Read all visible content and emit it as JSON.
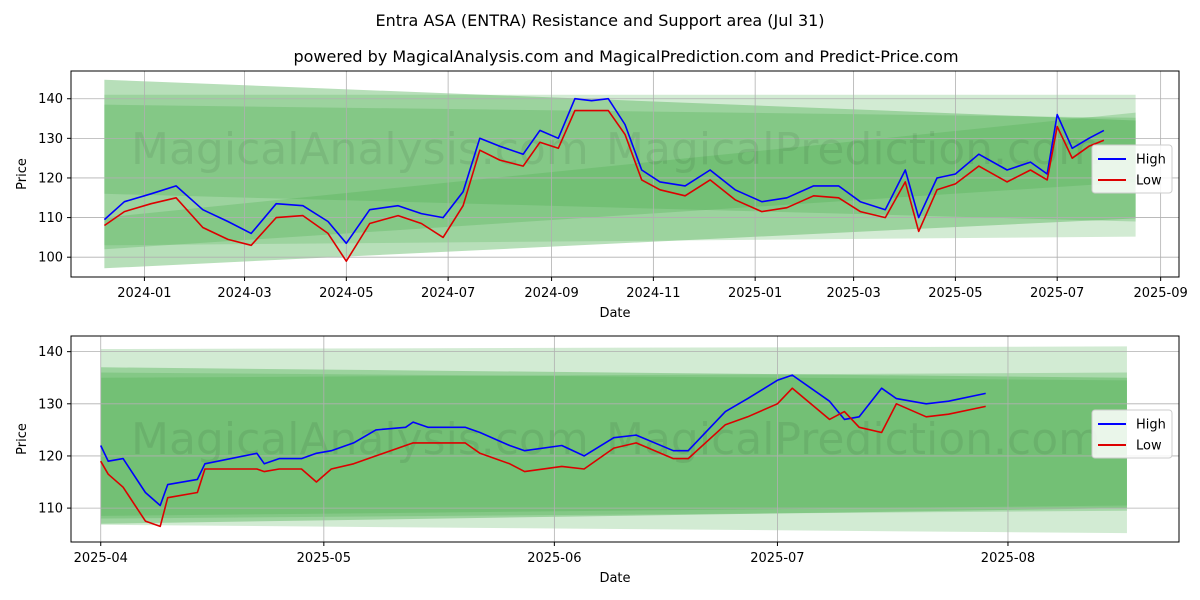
{
  "title": "Entra ASA (ENTRA) Resistance and Support area (Jul 31)",
  "subtitle": "powered by MagicalAnalysis.com and MagicalPrediction.com and Predict-Price.com",
  "watermarks": [
    "MagicalAnalysis.com",
    "MagicalPrediction.com"
  ],
  "colors": {
    "high": "#0000ff",
    "low": "#dd0000",
    "band": "#4caf50",
    "grid": "#b0b0b0"
  },
  "chart_data": [
    {
      "type": "line",
      "xlabel": "Date",
      "ylabel": "Price",
      "grid": true,
      "legend": "right",
      "xlim": [
        "2023-11-18",
        "2025-09-12"
      ],
      "ylim": [
        95,
        147
      ],
      "x_ticks": [
        "2024-01",
        "2024-03",
        "2024-05",
        "2024-07",
        "2024-09",
        "2024-11",
        "2025-01",
        "2025-03",
        "2025-05",
        "2025-07",
        "2025-09"
      ],
      "y_ticks": [
        100,
        110,
        120,
        130,
        140
      ],
      "bands": [
        {
          "x": [
            "2023-12-08",
            "2025-08-17"
          ],
          "upper": [
            144.8,
            134.5
          ],
          "lower": [
            97.2,
            109.8
          ],
          "opacity": 0.4
        },
        {
          "x": [
            "2023-12-08",
            "2025-08-17"
          ],
          "upper": [
            141.0,
            141.0
          ],
          "lower": [
            103.0,
            105.2
          ],
          "opacity": 0.25
        },
        {
          "x": [
            "2023-12-08",
            "2025-08-17"
          ],
          "upper": [
            138.5,
            135.2
          ],
          "lower": [
            116.0,
            109.0
          ],
          "opacity": 0.3
        },
        {
          "x": [
            "2023-12-08",
            "2025-08-17"
          ],
          "upper": [
            110.0,
            136.5
          ],
          "lower": [
            102.0,
            119.0
          ],
          "opacity": 0.3
        }
      ],
      "series": [
        {
          "name": "High",
          "x": [
            "2023-12-08",
            "2023-12-20",
            "2024-01-05",
            "2024-01-20",
            "2024-02-05",
            "2024-02-20",
            "2024-03-05",
            "2024-03-20",
            "2024-04-05",
            "2024-04-20",
            "2024-05-01",
            "2024-05-15",
            "2024-06-01",
            "2024-06-15",
            "2024-06-28",
            "2024-07-10",
            "2024-07-20",
            "2024-08-01",
            "2024-08-15",
            "2024-08-25",
            "2024-09-05",
            "2024-09-15",
            "2024-09-25",
            "2024-10-05",
            "2024-10-15",
            "2024-10-25",
            "2024-11-05",
            "2024-11-20",
            "2024-12-05",
            "2024-12-20",
            "2025-01-05",
            "2025-01-20",
            "2025-02-05",
            "2025-02-20",
            "2025-03-05",
            "2025-03-20",
            "2025-04-01",
            "2025-04-09",
            "2025-04-20",
            "2025-05-01",
            "2025-05-15",
            "2025-06-01",
            "2025-06-15",
            "2025-06-25",
            "2025-07-01",
            "2025-07-10",
            "2025-07-20",
            "2025-07-29"
          ],
          "y": [
            109.5,
            114.0,
            116.0,
            118.0,
            112.0,
            109.0,
            106.0,
            113.5,
            113.0,
            109.0,
            103.5,
            112.0,
            113.0,
            111.0,
            110.0,
            116.5,
            130.0,
            128.0,
            126.0,
            132.0,
            130.0,
            140.0,
            139.5,
            140.0,
            133.5,
            122.0,
            119.0,
            118.0,
            122.0,
            117.0,
            114.0,
            115.0,
            118.0,
            118.0,
            114.0,
            112.0,
            122.0,
            110.0,
            120.0,
            121.0,
            126.0,
            122.0,
            124.0,
            121.0,
            136.0,
            127.5,
            130.0,
            132.0
          ]
        },
        {
          "name": "Low",
          "x": [
            "2023-12-08",
            "2023-12-20",
            "2024-01-05",
            "2024-01-20",
            "2024-02-05",
            "2024-02-20",
            "2024-03-05",
            "2024-03-20",
            "2024-04-05",
            "2024-04-20",
            "2024-05-01",
            "2024-05-15",
            "2024-06-01",
            "2024-06-15",
            "2024-06-28",
            "2024-07-10",
            "2024-07-20",
            "2024-08-01",
            "2024-08-15",
            "2024-08-25",
            "2024-09-05",
            "2024-09-15",
            "2024-09-25",
            "2024-10-05",
            "2024-10-15",
            "2024-10-25",
            "2024-11-05",
            "2024-11-20",
            "2024-12-05",
            "2024-12-20",
            "2025-01-05",
            "2025-01-20",
            "2025-02-05",
            "2025-02-20",
            "2025-03-05",
            "2025-03-20",
            "2025-04-01",
            "2025-04-09",
            "2025-04-20",
            "2025-05-01",
            "2025-05-15",
            "2025-06-01",
            "2025-06-15",
            "2025-06-25",
            "2025-07-01",
            "2025-07-10",
            "2025-07-20",
            "2025-07-29"
          ],
          "y": [
            108.0,
            111.5,
            113.5,
            115.0,
            107.5,
            104.5,
            103.0,
            110.0,
            110.5,
            106.0,
            99.0,
            108.5,
            110.5,
            108.5,
            105.0,
            113.0,
            127.0,
            124.5,
            123.0,
            129.0,
            127.5,
            137.0,
            137.0,
            137.0,
            131.0,
            119.5,
            117.0,
            115.5,
            119.5,
            114.5,
            111.5,
            112.5,
            115.5,
            115.0,
            111.5,
            110.0,
            119.0,
            106.5,
            117.0,
            118.5,
            123.0,
            119.0,
            122.0,
            119.5,
            133.0,
            125.0,
            128.0,
            129.5
          ]
        }
      ]
    },
    {
      "type": "line",
      "xlabel": "Date",
      "ylabel": "Price",
      "grid": true,
      "legend": "right",
      "xlim": [
        "2025-03-28",
        "2025-08-24"
      ],
      "ylim": [
        103.5,
        143
      ],
      "x_ticks": [
        "2025-04",
        "2025-05",
        "2025-06",
        "2025-07",
        "2025-08"
      ],
      "y_ticks": [
        110,
        120,
        130,
        140
      ],
      "bands": [
        {
          "x": [
            "2025-04-01",
            "2025-08-17"
          ],
          "upper": [
            140.5,
            141.0
          ],
          "lower": [
            106.8,
            105.2
          ],
          "opacity": 0.25
        },
        {
          "x": [
            "2025-04-01",
            "2025-08-17"
          ],
          "upper": [
            137.0,
            135.0
          ],
          "lower": [
            107.0,
            110.0
          ],
          "opacity": 0.4
        },
        {
          "x": [
            "2025-04-01",
            "2025-08-17"
          ],
          "upper": [
            136.0,
            134.5
          ],
          "lower": [
            108.0,
            109.5
          ],
          "opacity": 0.3
        },
        {
          "x": [
            "2025-04-01",
            "2025-08-17"
          ],
          "upper": [
            135.0,
            136.0
          ],
          "lower": [
            108.5,
            110.5
          ],
          "opacity": 0.3
        }
      ],
      "series": [
        {
          "name": "High",
          "x": [
            "2025-04-01",
            "2025-04-02",
            "2025-04-04",
            "2025-04-07",
            "2025-04-09",
            "2025-04-10",
            "2025-04-14",
            "2025-04-15",
            "2025-04-22",
            "2025-04-23",
            "2025-04-25",
            "2025-04-28",
            "2025-04-30",
            "2025-05-02",
            "2025-05-05",
            "2025-05-08",
            "2025-05-12",
            "2025-05-13",
            "2025-05-15",
            "2025-05-20",
            "2025-05-22",
            "2025-05-26",
            "2025-05-28",
            "2025-06-02",
            "2025-06-05",
            "2025-06-09",
            "2025-06-12",
            "2025-06-17",
            "2025-06-19",
            "2025-06-24",
            "2025-06-27",
            "2025-07-01",
            "2025-07-03",
            "2025-07-08",
            "2025-07-10",
            "2025-07-12",
            "2025-07-15",
            "2025-07-17",
            "2025-07-21",
            "2025-07-24",
            "2025-07-29"
          ],
          "y": [
            122.0,
            119.0,
            119.5,
            113.0,
            110.5,
            114.5,
            115.5,
            118.5,
            120.5,
            118.5,
            119.5,
            119.5,
            120.5,
            121.0,
            122.5,
            125.0,
            125.5,
            126.5,
            125.5,
            125.5,
            124.5,
            122.0,
            121.0,
            122.0,
            120.0,
            123.5,
            124.0,
            121.0,
            121.0,
            128.5,
            131.0,
            134.5,
            135.5,
            130.5,
            127.0,
            127.5,
            133.0,
            131.0,
            130.0,
            130.5,
            132.0
          ]
        },
        {
          "name": "Low",
          "x": [
            "2025-04-01",
            "2025-04-02",
            "2025-04-04",
            "2025-04-07",
            "2025-04-09",
            "2025-04-10",
            "2025-04-14",
            "2025-04-15",
            "2025-04-22",
            "2025-04-23",
            "2025-04-25",
            "2025-04-28",
            "2025-04-30",
            "2025-05-02",
            "2025-05-05",
            "2025-05-08",
            "2025-05-12",
            "2025-05-13",
            "2025-05-15",
            "2025-05-20",
            "2025-05-22",
            "2025-05-26",
            "2025-05-28",
            "2025-06-02",
            "2025-06-05",
            "2025-06-09",
            "2025-06-12",
            "2025-06-17",
            "2025-06-19",
            "2025-06-24",
            "2025-06-27",
            "2025-07-01",
            "2025-07-03",
            "2025-07-08",
            "2025-07-10",
            "2025-07-12",
            "2025-07-15",
            "2025-07-17",
            "2025-07-21",
            "2025-07-24",
            "2025-07-29"
          ],
          "y": [
            119.0,
            116.5,
            114.0,
            107.5,
            106.5,
            112.0,
            113.0,
            117.5,
            117.5,
            117.0,
            117.5,
            117.5,
            115.0,
            117.5,
            118.5,
            120.0,
            122.0,
            122.5,
            122.5,
            122.5,
            120.5,
            118.5,
            117.0,
            118.0,
            117.5,
            121.5,
            122.5,
            119.5,
            119.5,
            126.0,
            127.5,
            130.0,
            133.0,
            127.0,
            128.5,
            125.5,
            124.5,
            130.0,
            127.5,
            128.0,
            129.5
          ]
        }
      ]
    }
  ]
}
